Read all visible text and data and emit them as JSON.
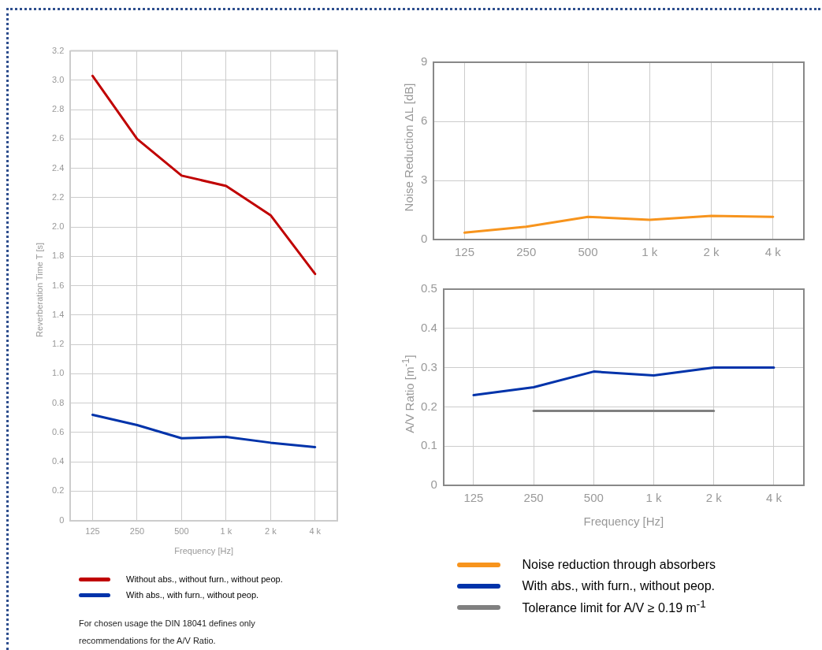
{
  "chart_data": [
    {
      "type": "line",
      "xlabel": "Frequency [Hz]",
      "ylabel": "Reverberation Time T [s]",
      "categories": [
        "125",
        "250",
        "500",
        "1 k",
        "2 k",
        "4 k"
      ],
      "series": [
        {
          "name": "Without abs., without furn., without peop.",
          "color": "#c00000",
          "values": [
            3.03,
            2.6,
            2.35,
            2.28,
            2.08,
            1.68
          ]
        },
        {
          "name": "With abs., with furn., without peop.",
          "color": "#0033aa",
          "values": [
            0.72,
            0.65,
            0.56,
            0.57,
            0.53,
            0.5
          ]
        }
      ],
      "ylim": [
        0,
        3.2
      ],
      "yticks": [
        0,
        0.2,
        0.4,
        0.6,
        0.8,
        {
          "value": 1,
          "label": "1.0"
        },
        1.2,
        1.4,
        1.6,
        1.8,
        {
          "value": 2,
          "label": "2.0"
        },
        2.2,
        2.4,
        2.6,
        2.8,
        {
          "value": 3,
          "label": "3.0"
        },
        3.2
      ],
      "grid": true,
      "legend": "bottom",
      "line_style": "solid",
      "annotations": [
        "For chosen usage the DIN 18041 defines only recommendations for the A/V Ratio."
      ]
    },
    {
      "type": "line",
      "ylabel": "Noise Reduction  ΔL [dB]",
      "categories": [
        "125",
        "250",
        "500",
        "1 k",
        "2 k",
        "4 k"
      ],
      "series": [
        {
          "name": "Noise reduction through absorbers",
          "color": "#f7941d",
          "values": [
            0.35,
            0.65,
            1.15,
            1.0,
            1.2,
            1.15
          ]
        }
      ],
      "ylim": [
        0,
        9
      ],
      "yticks": [
        0,
        3,
        6,
        9
      ],
      "grid": true,
      "legend": "bottom",
      "line_style": "solid"
    },
    {
      "type": "line",
      "xlabel": "Frequency [Hz]",
      "ylabel": "A/V Ratio  [m$^{-1}$]",
      "categories": [
        "125",
        "250",
        "500",
        "1 k",
        "2 k",
        "4 k"
      ],
      "series": [
        {
          "name": "With abs., with furn., without peop.",
          "color": "#0033aa",
          "values": [
            0.23,
            0.25,
            0.29,
            0.28,
            0.3,
            0.3
          ]
        },
        {
          "name": "Tolerance limit for A/V ≥ 0.19 m$^{-1}$",
          "color": "#808080",
          "values": [
            null,
            0.19,
            0.19,
            0.19,
            0.19,
            null
          ]
        }
      ],
      "ylim": [
        0,
        0.5
      ],
      "yticks": [
        0,
        0.1,
        0.2,
        0.3,
        0.4,
        0.5
      ],
      "grid": true,
      "legend": "bottom",
      "line_style": "solid"
    }
  ]
}
